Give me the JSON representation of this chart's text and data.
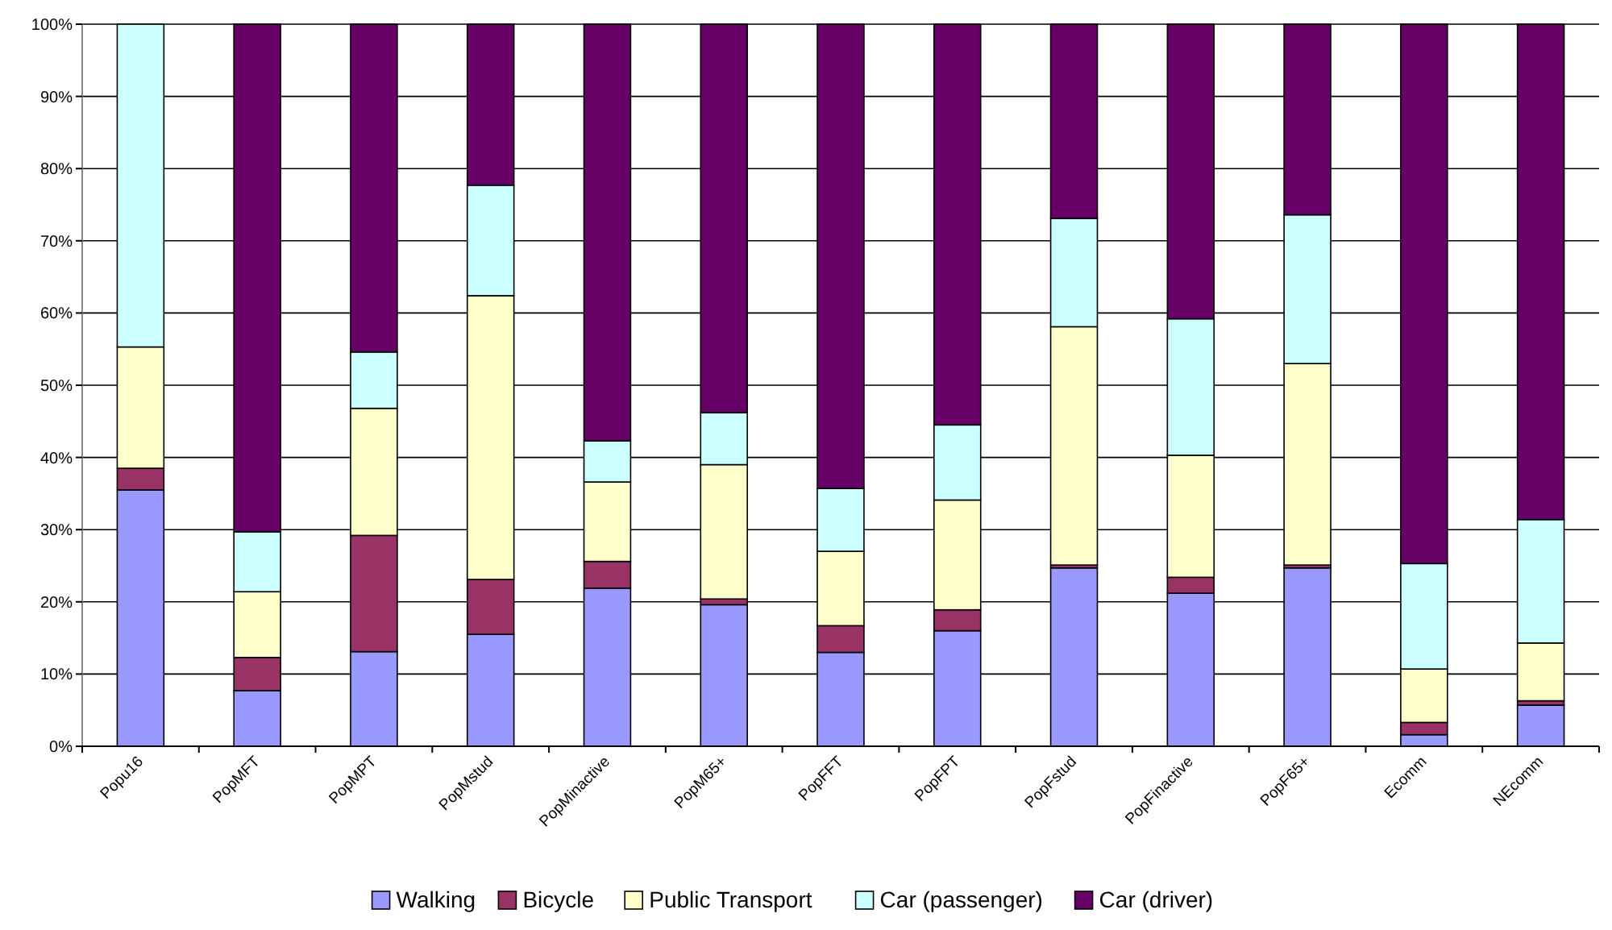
{
  "chart_data": {
    "type": "bar",
    "stacked": true,
    "categories": [
      "Popu16",
      "PopMFT",
      "PopMPT",
      "PopMstud",
      "PopMinactive",
      "PopM65+",
      "PopFFT",
      "PopFPT",
      "PopFstud",
      "PopFinactive",
      "PopF65+",
      "Ecomm",
      "NEcomm"
    ],
    "series": [
      {
        "name": "Walking",
        "color": "#9999ff",
        "values": [
          35.5,
          7.7,
          13.1,
          15.5,
          21.9,
          19.6,
          13.0,
          16.0,
          24.7,
          21.2,
          24.7,
          1.6,
          5.7
        ]
      },
      {
        "name": "Bicycle",
        "color": "#993366",
        "values": [
          3.0,
          4.6,
          16.1,
          7.6,
          3.7,
          0.8,
          3.7,
          2.9,
          0.4,
          2.2,
          0.4,
          1.7,
          0.6
        ]
      },
      {
        "name": "Public Transport",
        "color": "#ffffcc",
        "values": [
          16.8,
          9.1,
          17.6,
          39.3,
          11.0,
          18.6,
          10.3,
          15.2,
          33.0,
          16.9,
          27.9,
          7.4,
          8.0
        ]
      },
      {
        "name": "Car (passenger)",
        "color": "#ccffff",
        "values": [
          44.7,
          8.3,
          7.8,
          15.3,
          5.7,
          7.2,
          8.7,
          10.4,
          15.0,
          18.9,
          20.6,
          14.6,
          17.1
        ]
      },
      {
        "name": "Car (driver)",
        "color": "#660066",
        "values": [
          0,
          70.3,
          45.4,
          22.3,
          57.7,
          53.8,
          64.3,
          55.5,
          26.9,
          40.8,
          26.4,
          74.7,
          68.6
        ]
      }
    ],
    "ylim": [
      0,
      100
    ],
    "yticks": [
      {
        "value": 0,
        "label": "0%"
      },
      {
        "value": 10,
        "label": "10%"
      },
      {
        "value": 20,
        "label": "20%"
      },
      {
        "value": 30,
        "label": "30%"
      },
      {
        "value": 40,
        "label": "40%"
      },
      {
        "value": 50,
        "label": "50%"
      },
      {
        "value": 60,
        "label": "60%"
      },
      {
        "value": 70,
        "label": "70%"
      },
      {
        "value": 80,
        "label": "80%"
      },
      {
        "value": 90,
        "label": "90%"
      },
      {
        "value": 100,
        "label": "100%"
      }
    ],
    "grid": "y",
    "legend": "bottom"
  }
}
